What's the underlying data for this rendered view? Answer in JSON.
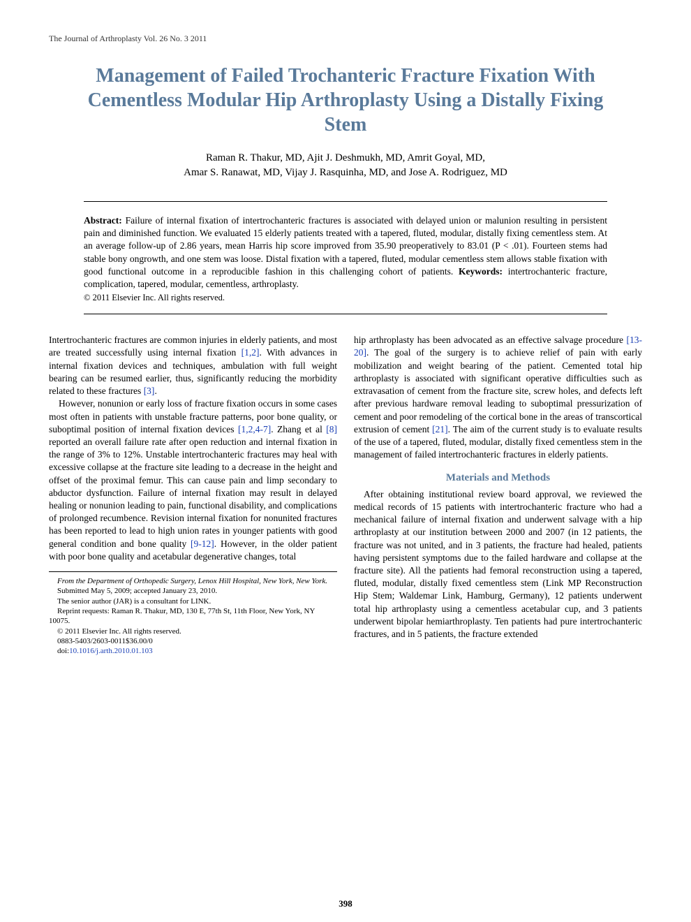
{
  "running_head": "The Journal of Arthroplasty Vol. 26 No. 3 2011",
  "title": "Management of Failed Trochanteric Fracture Fixation With Cementless Modular Hip Arthroplasty Using a Distally Fixing Stem",
  "authors_line1": "Raman R. Thakur, MD, Ajit J. Deshmukh, MD, Amrit Goyal, MD,",
  "authors_line2": "Amar S. Ranawat, MD, Vijay J. Rasquinha, MD, and Jose A. Rodriguez, MD",
  "abstract": {
    "label": "Abstract:",
    "body": "Failure of internal fixation of intertrochanteric fractures is associated with delayed union or malunion resulting in persistent pain and diminished function. We evaluated 15 elderly patients treated with a tapered, fluted, modular, distally fixing cementless stem. At an average follow-up of 2.86 years, mean Harris hip score improved from 35.90 preoperatively to 83.01 (P < .01). Fourteen stems had stable bony ongrowth, and one stem was loose. Distal fixation with a tapered, fluted, modular cementless stem allows stable fixation with good functional outcome in a reproducible fashion in this challenging cohort of patients.",
    "keywords_label": "Keywords:",
    "keywords": "intertrochanteric fracture, complication, tapered, modular, cementless, arthroplasty.",
    "copyright": "© 2011 Elsevier Inc. All rights reserved."
  },
  "left_col": {
    "p1a": "Intertrochanteric fractures are common injuries in elderly patients, and most are treated successfully using internal fixation ",
    "ref1": "[1,2]",
    "p1b": ". With advances in internal fixation devices and techniques, ambulation with full weight bearing can be resumed earlier, thus, significantly reducing the morbidity related to these fractures ",
    "ref2": "[3]",
    "p1c": ".",
    "p2a": "However, nonunion or early loss of fracture fixation occurs in some cases most often in patients with unstable fracture patterns, poor bone quality, or suboptimal position of internal fixation devices ",
    "ref3": "[1,2,4-7]",
    "p2b": ". Zhang et al ",
    "ref4": "[8]",
    "p2c": " reported an overall failure rate after open reduction and internal fixation in the range of 3% to 12%. Unstable intertrochanteric fractures may heal with excessive collapse at the fracture site leading to a decrease in the height and offset of the proximal femur. This can cause pain and limp secondary to abductor dysfunction. Failure of internal fixation may result in delayed healing or nonunion leading to pain, functional disability, and complications of prolonged recumbence. Revision internal fixation for nonunited fractures has been reported to lead to high union rates in younger patients with good general condition and bone quality ",
    "ref5": "[9-12]",
    "p2d": ". However, in the older patient with poor bone quality and acetabular degenerative changes, total"
  },
  "right_col": {
    "p1a": "hip arthroplasty has been advocated as an effective salvage procedure ",
    "ref6": "[13-20]",
    "p1b": ". The goal of the surgery is to achieve relief of pain with early mobilization and weight bearing of the patient. Cemented total hip arthroplasty is associated with significant operative difficulties such as extravasation of cement from the fracture site, screw holes, and defects left after previous hardware removal leading to suboptimal pressurization of cement and poor remodeling of the cortical bone in the areas of transcortical extrusion of cement ",
    "ref7": "[21]",
    "p1c": ". The aim of the current study is to evaluate results of the use of a tapered, fluted, modular, distally fixed cementless stem in the management of failed intertrochanteric fractures in elderly patients.",
    "section": "Materials and Methods",
    "p2": "After obtaining institutional review board approval, we reviewed the medical records of 15 patients with intertrochanteric fracture who had a mechanical failure of internal fixation and underwent salvage with a hip arthroplasty at our institution between 2000 and 2007 (in 12 patients, the fracture was not united, and in 3 patients, the fracture had healed, patients having persistent symptoms due to the failed hardware and collapse at the fracture site). All the patients had femoral reconstruction using a tapered, fluted, modular, distally fixed cementless stem (Link MP Reconstruction Hip Stem; Waldemar Link, Hamburg, Germany), 12 patients underwent total hip arthroplasty using a cementless acetabular cup, and 3 patients underwent bipolar hemiarthroplasty. Ten patients had pure intertrochanteric fractures, and in 5 patients, the fracture extended"
  },
  "footnotes": {
    "from": "From the Department of Orthopedic Surgery, Lenox Hill Hospital, New York, New York.",
    "submitted": "Submitted May 5, 2009; accepted January 23, 2010.",
    "disclosure": "The senior author (JAR) is a consultant for LINK.",
    "reprint": "Reprint requests: Raman R. Thakur, MD, 130 E, 77th St, 11th Floor, New York, NY 10075.",
    "copyright": "© 2011 Elsevier Inc. All rights reserved.",
    "code": "0883-5403/2603-0011$36.00/0",
    "doi_label": "doi:",
    "doi": "10.1016/j.arth.2010.01.103"
  },
  "page_number": "398",
  "colors": {
    "title": "#5a7a9a",
    "link": "#1a3fb5",
    "text": "#000000",
    "bg": "#ffffff"
  },
  "fonts": {
    "title_size": 28,
    "body_size": 13.5,
    "footnote_size": 11
  }
}
